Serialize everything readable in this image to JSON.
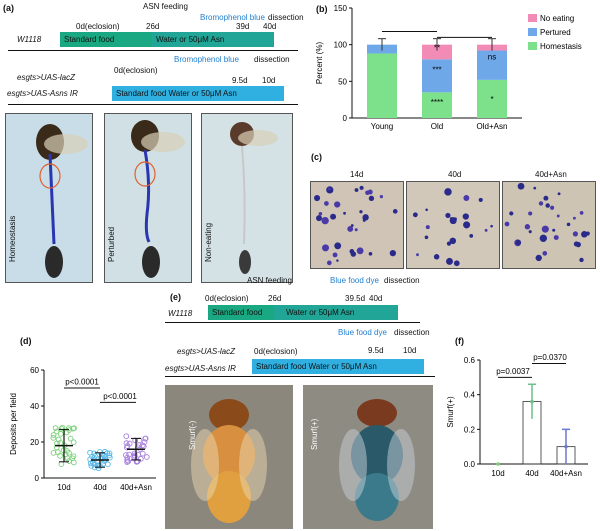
{
  "panels": {
    "a": "(a)",
    "b": "(b)",
    "c": "(c)",
    "d": "(d)",
    "e": "(e)",
    "f": "(f)"
  },
  "a": {
    "asn_feeding": "ASN feeding",
    "bromophenol": "Bromophenol blue",
    "dissection": "dissection",
    "t0": "0d(eclosion)",
    "t26": "26d",
    "t39": "39d",
    "t40": "40d",
    "genotype1": "W1118",
    "bar1_left": "Standard food",
    "bar1_right": "Water or 50μM Asn",
    "bromophenol2": "Bromophenol blue",
    "dissection2": "dissection",
    "t0b": "0d(eclosion)",
    "t95": "9.5d",
    "t10": "10d",
    "genotype2": "esgts>UAS-lacZ",
    "genotype3": "esgts>UAS-Asns IR",
    "bar2": "Standard food Water or 50μM Asn",
    "photo_labels": [
      "Homeostasis",
      "Perturbed",
      "Non-eating"
    ]
  },
  "b": {
    "ylabel": "Percent (%)",
    "legend": [
      "No eating",
      "Pertured",
      "Homestasis"
    ],
    "colors": {
      "no_eating": "#f28bb5",
      "pertured": "#6fa8e8",
      "homestasis": "#7de08a"
    },
    "sig": {
      "old_top": "**",
      "old_mid": "***",
      "old_bot": "****",
      "asn_top": "ns",
      "asn_bot": "*"
    }
  },
  "c": {
    "labels": [
      "14d",
      "40d",
      "40d+Asn"
    ]
  },
  "e": {
    "asn_feeding": "ASN feeding",
    "blue_dye": "Blue food dye",
    "dissection": "dissection",
    "t0": "0d(eclosion)",
    "t26": "26d",
    "t395": "39.5d",
    "t40": "40d",
    "genotype1": "W1118",
    "bar1_left": "Standard food",
    "bar1_right": "Water or 50μM Asn",
    "blue_dye2": "Blue food dye",
    "dissection2": "dissection",
    "t0b": "0d(eclosion)",
    "t95": "9.5d",
    "t10": "10d",
    "genotype2": "esgts>UAS-lacZ",
    "genotype3": "esgts>UAS-Asns IR",
    "bar2": "Standard food Water or 50μM Asn",
    "photo_labels": [
      "Smurf(-)",
      "Smurf(+)"
    ]
  },
  "d": {
    "ylabel": "Deposits per field",
    "p1": "p<0.0001",
    "p2": "p<0.0001"
  },
  "f": {
    "ylabel": "Smurf(+)",
    "p1": "p=0.0037",
    "p2": "p=0.0370"
  },
  "chart_data": [
    {
      "type": "bar",
      "stacked": true,
      "panel": "b",
      "categories": [
        "Young",
        "Old",
        "Old+Asn"
      ],
      "series": [
        {
          "name": "Homestasis",
          "values": [
            88,
            35,
            52
          ]
        },
        {
          "name": "Pertured",
          "values": [
            12,
            45,
            40
          ]
        },
        {
          "name": "No eating",
          "values": [
            0,
            20,
            8
          ]
        }
      ],
      "ylabel": "Percent (%)",
      "ylim": [
        0,
        150
      ],
      "yticks": [
        0,
        50,
        100,
        150
      ]
    },
    {
      "type": "scatter",
      "panel": "d",
      "categories": [
        "10d",
        "40d",
        "40d+Asn"
      ],
      "means": [
        18,
        10,
        16
      ],
      "sd": [
        9,
        4,
        6
      ],
      "ylabel": "Deposits per field",
      "ylim": [
        0,
        60
      ],
      "yticks": [
        0,
        20,
        40,
        60
      ]
    },
    {
      "type": "bar",
      "panel": "f",
      "categories": [
        "10d",
        "40d",
        "40d+Asn"
      ],
      "values": [
        0,
        0.36,
        0.1
      ],
      "errors": [
        0,
        0.1,
        0.1
      ],
      "ylabel": "Smurf(+)",
      "ylim": [
        0,
        0.6
      ],
      "yticks": [
        0.0,
        0.2,
        0.4,
        0.6
      ]
    }
  ]
}
